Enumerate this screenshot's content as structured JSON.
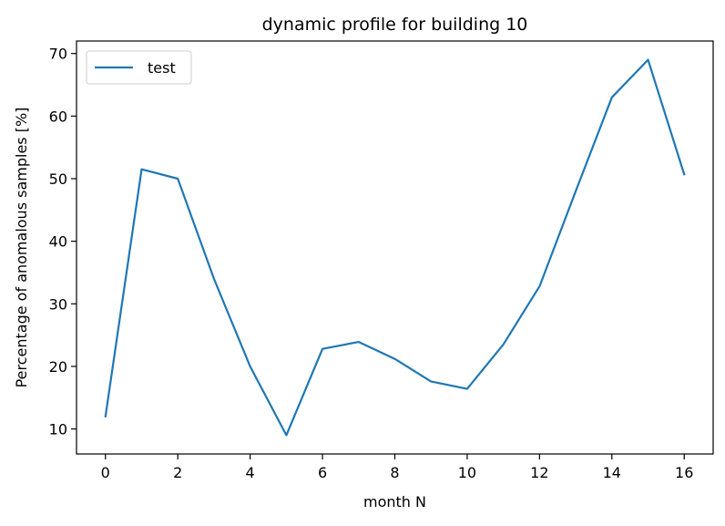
{
  "chart_data": {
    "type": "line",
    "title": "dynamic profile for building 10",
    "xlabel": "month N",
    "ylabel": "Percentage of anomalous samples [%]",
    "xlim": [
      -0.8,
      16.8
    ],
    "ylim": [
      6.0,
      72.0
    ],
    "xticks": [
      0,
      2,
      4,
      6,
      8,
      10,
      12,
      14,
      16
    ],
    "yticks": [
      10,
      20,
      30,
      40,
      50,
      60,
      70
    ],
    "grid": false,
    "legend_position": "top-left",
    "series": [
      {
        "name": "test",
        "color": "#1f77b4",
        "x": [
          0,
          1,
          2,
          3,
          4,
          5,
          6,
          7,
          8,
          9,
          10,
          11,
          12,
          13,
          14,
          15,
          16
        ],
        "y": [
          12.0,
          51.5,
          50.0,
          34.0,
          20.0,
          9.0,
          22.8,
          23.9,
          21.2,
          17.6,
          16.4,
          23.5,
          32.8,
          48.0,
          63.0,
          69.0,
          50.7
        ]
      }
    ]
  }
}
